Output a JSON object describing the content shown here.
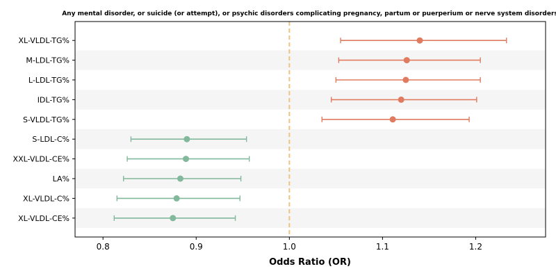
{
  "chart_data": {
    "type": "forest",
    "title": "Any mental disorder, or suicide (or attempt), or psychic disorders complicating pregnancy, partum or puerperium or nerve system disorders",
    "xlabel": "Odds Ratio (OR)",
    "xlim": [
      0.77,
      1.275
    ],
    "xticks": [
      0.8,
      0.9,
      1.0,
      1.1,
      1.2
    ],
    "xtick_labels": [
      "0.8",
      "0.9",
      "1.0",
      "1.1",
      "1.2"
    ],
    "reference_line": 1.0,
    "reference_color": "#F0C27B",
    "positive_color": "#E07B5F",
    "negative_color": "#82B89B",
    "band_color": "#F5F5F5",
    "rows": [
      {
        "label": "XL-VLDL-TG%",
        "or": 1.14,
        "lower": 1.055,
        "upper": 1.233
      },
      {
        "label": "M-LDL-TG%",
        "or": 1.126,
        "lower": 1.053,
        "upper": 1.205
      },
      {
        "label": "L-LDL-TG%",
        "or": 1.125,
        "lower": 1.05,
        "upper": 1.205
      },
      {
        "label": "IDL-TG%",
        "or": 1.12,
        "lower": 1.045,
        "upper": 1.201
      },
      {
        "label": "S-VLDL-TG%",
        "or": 1.111,
        "lower": 1.035,
        "upper": 1.193
      },
      {
        "label": "S-LDL-C%",
        "or": 0.89,
        "lower": 0.83,
        "upper": 0.954
      },
      {
        "label": "XXL-VLDL-CE%",
        "or": 0.889,
        "lower": 0.826,
        "upper": 0.957
      },
      {
        "label": "LA%",
        "or": 0.883,
        "lower": 0.822,
        "upper": 0.948
      },
      {
        "label": "XL-VLDL-C%",
        "or": 0.879,
        "lower": 0.815,
        "upper": 0.947
      },
      {
        "label": "XL-VLDL-CE%",
        "or": 0.875,
        "lower": 0.812,
        "upper": 0.942
      }
    ]
  }
}
